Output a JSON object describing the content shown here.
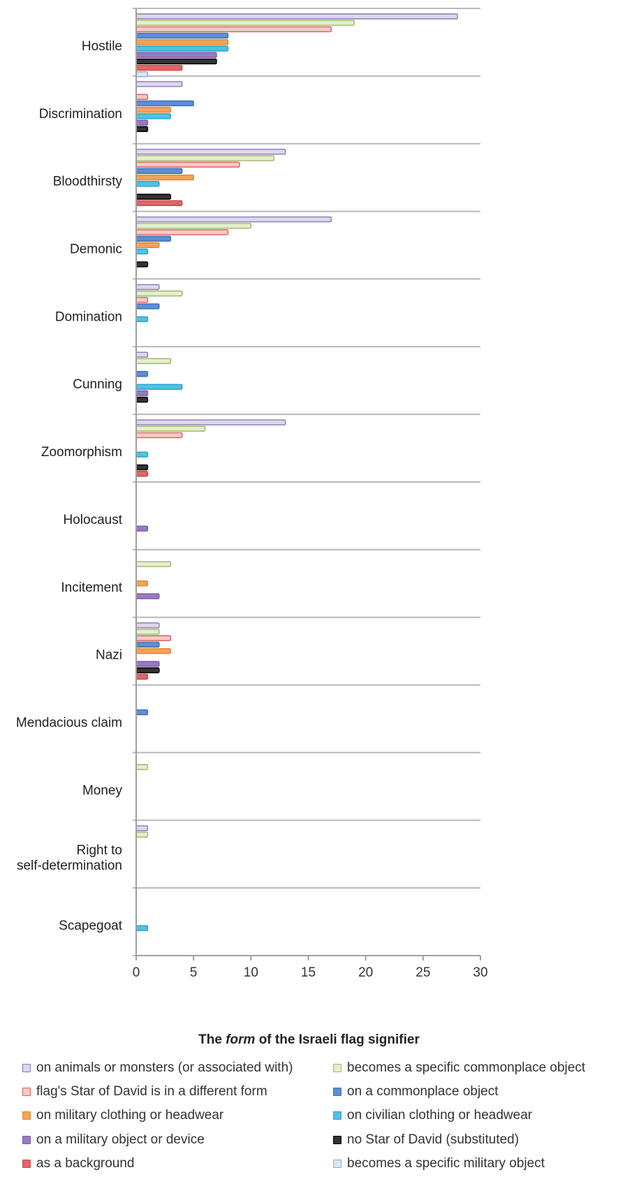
{
  "chart_data": {
    "type": "bar",
    "orientation": "horizontal",
    "categories": [
      "Hostile",
      "Discrimination",
      "Bloodthirsty",
      "Demonic",
      "Domination",
      "Cunning",
      "Zoomorphism",
      "Holocaust",
      "Incitement",
      "Nazi",
      "Mendacious claim",
      "Money",
      "Right to self-determination",
      "Scapegoat"
    ],
    "category_lines": [
      [
        "Hostile"
      ],
      [
        "Discrimination"
      ],
      [
        "Bloodthirsty"
      ],
      [
        "Demonic"
      ],
      [
        "Domination"
      ],
      [
        "Cunning"
      ],
      [
        "Zoomorphism"
      ],
      [
        "Holocaust"
      ],
      [
        "Incitement"
      ],
      [
        "Nazi"
      ],
      [
        "Mendacious claim"
      ],
      [
        "Money"
      ],
      [
        "Right to",
        "self-determination"
      ],
      [
        "Scapegoat"
      ]
    ],
    "series": [
      {
        "name": "on animals or monsters (or associated with)",
        "fill": "#ddd6ee",
        "stroke": "#8a7aaf",
        "values": [
          28,
          4,
          13,
          17,
          2,
          1,
          13,
          0,
          0,
          2,
          0,
          0,
          1,
          0
        ]
      },
      {
        "name": "becomes a specific commonplace object",
        "fill": "#e4efcc",
        "stroke": "#9db56a",
        "values": [
          19,
          0,
          12,
          10,
          4,
          3,
          6,
          0,
          3,
          2,
          0,
          1,
          1,
          0
        ]
      },
      {
        "name": "flag's Star of David is in a different form",
        "fill": "#f6c9c6",
        "stroke": "#d9605c",
        "values": [
          17,
          1,
          9,
          8,
          1,
          0,
          4,
          0,
          0,
          3,
          0,
          0,
          0,
          0
        ]
      },
      {
        "name": "on a commonplace object",
        "fill": "#5b8fd6",
        "stroke": "#3f6db3",
        "values": [
          8,
          5,
          4,
          3,
          2,
          1,
          0,
          0,
          0,
          2,
          1,
          0,
          0,
          0
        ]
      },
      {
        "name": "on military clothing or headwear",
        "fill": "#f5a25a",
        "stroke": "#e0862f",
        "values": [
          8,
          3,
          5,
          2,
          0,
          0,
          0,
          0,
          1,
          3,
          0,
          0,
          0,
          0
        ]
      },
      {
        "name": "on civilian clothing or headwear",
        "fill": "#4fc2e3",
        "stroke": "#2ba2c8",
        "values": [
          8,
          3,
          2,
          1,
          1,
          4,
          1,
          0,
          0,
          0,
          0,
          0,
          0,
          1
        ]
      },
      {
        "name": "on a military object or device",
        "fill": "#9a79c4",
        "stroke": "#7a59a6",
        "values": [
          7,
          1,
          0,
          0,
          0,
          1,
          0,
          1,
          2,
          2,
          0,
          0,
          0,
          0
        ]
      },
      {
        "name": "no Star of David (substituted)",
        "fill": "#333333",
        "stroke": "#000000",
        "values": [
          7,
          1,
          3,
          1,
          0,
          1,
          1,
          0,
          0,
          2,
          0,
          0,
          0,
          0
        ]
      },
      {
        "name": "as a background",
        "fill": "#e36565",
        "stroke": "#c94848",
        "values": [
          4,
          0,
          4,
          0,
          0,
          0,
          1,
          0,
          0,
          1,
          0,
          0,
          0,
          0
        ]
      },
      {
        "name": "becomes a specific military object",
        "fill": "#dbe6f6",
        "stroke": "#8ea9d4",
        "values": [
          1,
          0,
          0,
          0,
          0,
          0,
          0,
          0,
          0,
          0,
          0,
          0,
          0,
          0
        ]
      }
    ],
    "xlim": [
      0,
      30
    ],
    "xticks": [
      0,
      5,
      10,
      15,
      20,
      25,
      30
    ],
    "title": "",
    "xlabel": {
      "prefix": "The ",
      "emphasis": "form",
      "suffix": " of the Israeli flag signifier"
    },
    "ylabel": "",
    "grid": "horizontal separators between categories",
    "legend_position": "bottom, two columns",
    "legend_layout": [
      {
        "series": 0,
        "col": 0,
        "row": 0
      },
      {
        "series": 1,
        "col": 1,
        "row": 0
      },
      {
        "series": 2,
        "col": 0,
        "row": 1
      },
      {
        "series": 3,
        "col": 1,
        "row": 1
      },
      {
        "series": 4,
        "col": 0,
        "row": 2
      },
      {
        "series": 5,
        "col": 1,
        "row": 2
      },
      {
        "series": 6,
        "col": 0,
        "row": 3
      },
      {
        "series": 7,
        "col": 1,
        "row": 3
      },
      {
        "series": 8,
        "col": 0,
        "row": 4
      },
      {
        "series": 9,
        "col": 1,
        "row": 4
      }
    ]
  }
}
